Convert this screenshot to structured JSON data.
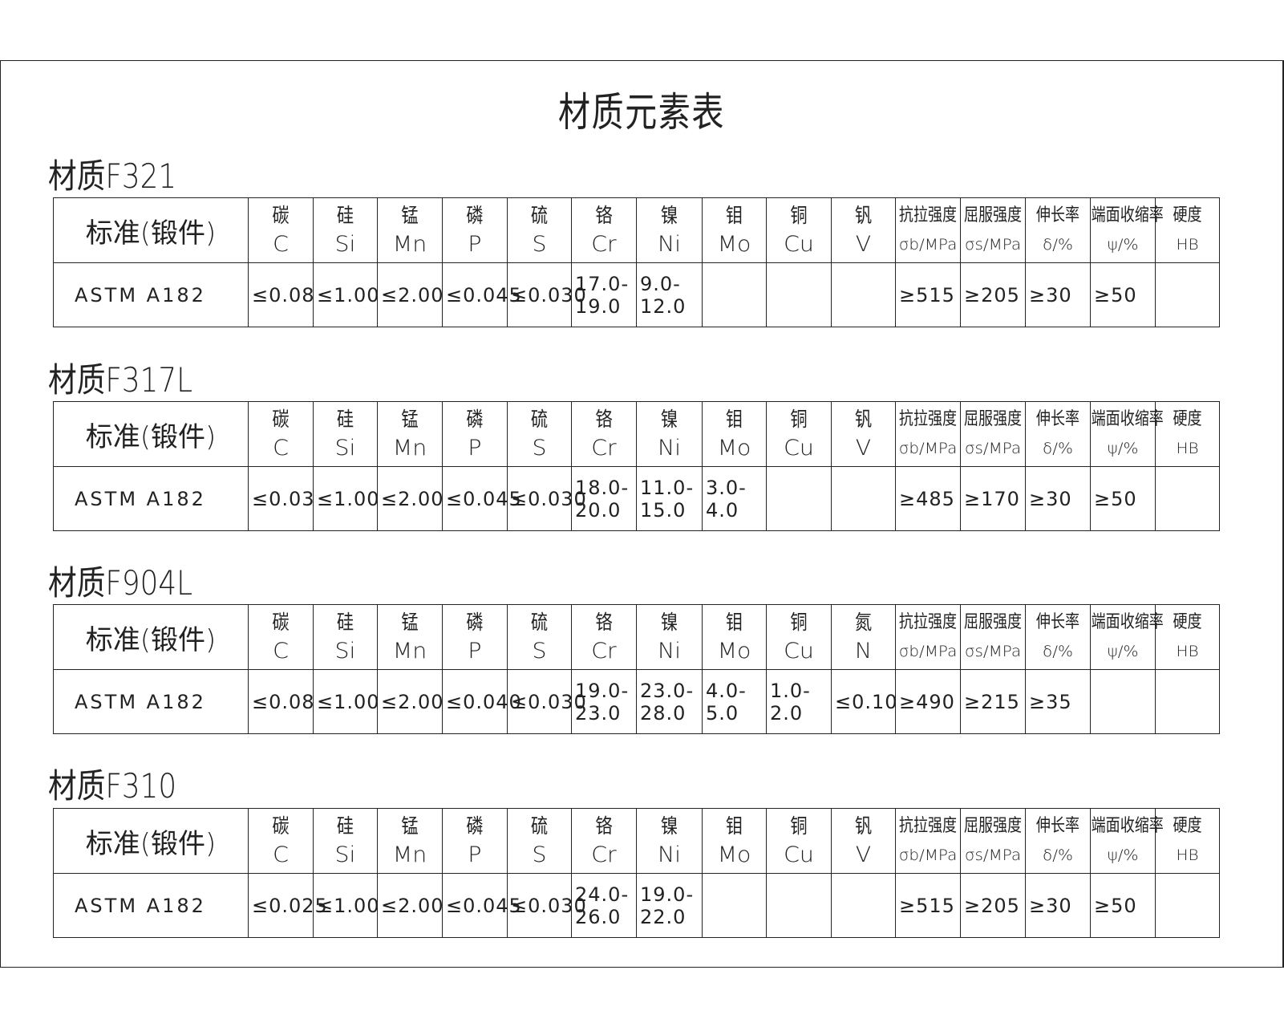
{
  "title": "材质元素表",
  "tables": [
    {
      "label": "材质F321",
      "standard_header": "标准(锻件)",
      "headers": [
        {
          "cn": "碳",
          "sym": "C"
        },
        {
          "cn": "硅",
          "sym": "Si"
        },
        {
          "cn": "锰",
          "sym": "Mn"
        },
        {
          "cn": "磷",
          "sym": "P"
        },
        {
          "cn": "硫",
          "sym": "S"
        },
        {
          "cn": "铬",
          "sym": "Cr"
        },
        {
          "cn": "镍",
          "sym": "Ni"
        },
        {
          "cn": "钼",
          "sym": "Mo"
        },
        {
          "cn": "铜",
          "sym": "Cu"
        },
        {
          "cn": "钒",
          "sym": "V"
        },
        {
          "cn": "抗拉强度",
          "sym": "σb/MPa"
        },
        {
          "cn": "屈服强度",
          "sym": "σs/MPa"
        },
        {
          "cn": "伸长率",
          "sym": "δ/%"
        },
        {
          "cn": "端面收缩率",
          "sym": "ψ/%"
        },
        {
          "cn": "硬度",
          "sym": "HB"
        }
      ],
      "standard": "ASTM A182",
      "values": [
        "≤0.08",
        "≤1.00",
        "≤2.00",
        "≤0.045",
        "≤0.030",
        "17.0-\n19.0",
        "9.0-\n12.0",
        "",
        "",
        "",
        "≥515",
        "≥205",
        "≥30",
        "≥50",
        ""
      ]
    },
    {
      "label": "材质F317L",
      "standard_header": "标准(锻件)",
      "headers": [
        {
          "cn": "碳",
          "sym": "C"
        },
        {
          "cn": "硅",
          "sym": "Si"
        },
        {
          "cn": "锰",
          "sym": "Mn"
        },
        {
          "cn": "磷",
          "sym": "P"
        },
        {
          "cn": "硫",
          "sym": "S"
        },
        {
          "cn": "铬",
          "sym": "Cr"
        },
        {
          "cn": "镍",
          "sym": "Ni"
        },
        {
          "cn": "钼",
          "sym": "Mo"
        },
        {
          "cn": "铜",
          "sym": "Cu"
        },
        {
          "cn": "钒",
          "sym": "V"
        },
        {
          "cn": "抗拉强度",
          "sym": "σb/MPa"
        },
        {
          "cn": "屈服强度",
          "sym": "σs/MPa"
        },
        {
          "cn": "伸长率",
          "sym": "δ/%"
        },
        {
          "cn": "端面收缩率",
          "sym": "ψ/%"
        },
        {
          "cn": "硬度",
          "sym": "HB"
        }
      ],
      "standard": "ASTM A182",
      "values": [
        "≤0.03",
        "≤1.00",
        "≤2.00",
        "≤0.045",
        "≤0.030",
        "18.0-\n20.0",
        "11.0-\n15.0",
        "3.0-\n4.0",
        "",
        "",
        "≥485",
        "≥170",
        "≥30",
        "≥50",
        ""
      ]
    },
    {
      "label": "材质F904L",
      "standard_header": "标准(锻件)",
      "headers": [
        {
          "cn": "碳",
          "sym": "C"
        },
        {
          "cn": "硅",
          "sym": "Si"
        },
        {
          "cn": "锰",
          "sym": "Mn"
        },
        {
          "cn": "磷",
          "sym": "P"
        },
        {
          "cn": "硫",
          "sym": "S"
        },
        {
          "cn": "铬",
          "sym": "Cr"
        },
        {
          "cn": "镍",
          "sym": "Ni"
        },
        {
          "cn": "钼",
          "sym": "Mo"
        },
        {
          "cn": "铜",
          "sym": "Cu"
        },
        {
          "cn": "氮",
          "sym": "N"
        },
        {
          "cn": "抗拉强度",
          "sym": "σb/MPa"
        },
        {
          "cn": "屈服强度",
          "sym": "σs/MPa"
        },
        {
          "cn": "伸长率",
          "sym": "δ/%"
        },
        {
          "cn": "端面收缩率",
          "sym": "ψ/%"
        },
        {
          "cn": "硬度",
          "sym": "HB"
        }
      ],
      "standard": "ASTM A182",
      "values": [
        "≤0.08",
        "≤1.00",
        "≤2.00",
        "≤0.040",
        "≤0.030",
        "19.0-\n23.0",
        "23.0-\n28.0",
        "4.0-\n5.0",
        "1.0-\n2.0",
        "≤0.10",
        "≥490",
        "≥215",
        "≥35",
        "",
        ""
      ]
    },
    {
      "label": "材质F310",
      "standard_header": "标准(锻件)",
      "headers": [
        {
          "cn": "碳",
          "sym": "C"
        },
        {
          "cn": "硅",
          "sym": "Si"
        },
        {
          "cn": "锰",
          "sym": "Mn"
        },
        {
          "cn": "磷",
          "sym": "P"
        },
        {
          "cn": "硫",
          "sym": "S"
        },
        {
          "cn": "铬",
          "sym": "Cr"
        },
        {
          "cn": "镍",
          "sym": "Ni"
        },
        {
          "cn": "钼",
          "sym": "Mo"
        },
        {
          "cn": "铜",
          "sym": "Cu"
        },
        {
          "cn": "钒",
          "sym": "V"
        },
        {
          "cn": "抗拉强度",
          "sym": "σb/MPa"
        },
        {
          "cn": "屈服强度",
          "sym": "σs/MPa"
        },
        {
          "cn": "伸长率",
          "sym": "δ/%"
        },
        {
          "cn": "端面收缩率",
          "sym": "ψ/%"
        },
        {
          "cn": "硬度",
          "sym": "HB"
        }
      ],
      "standard": "ASTM A182",
      "values": [
        "≤0.025",
        "≤1.00",
        "≤2.00",
        "≤0.045",
        "≤0.030",
        "24.0-\n26.0",
        "19.0-\n22.0",
        "",
        "",
        "",
        "≥515",
        "≥205",
        "≥30",
        "≥50",
        ""
      ]
    }
  ]
}
